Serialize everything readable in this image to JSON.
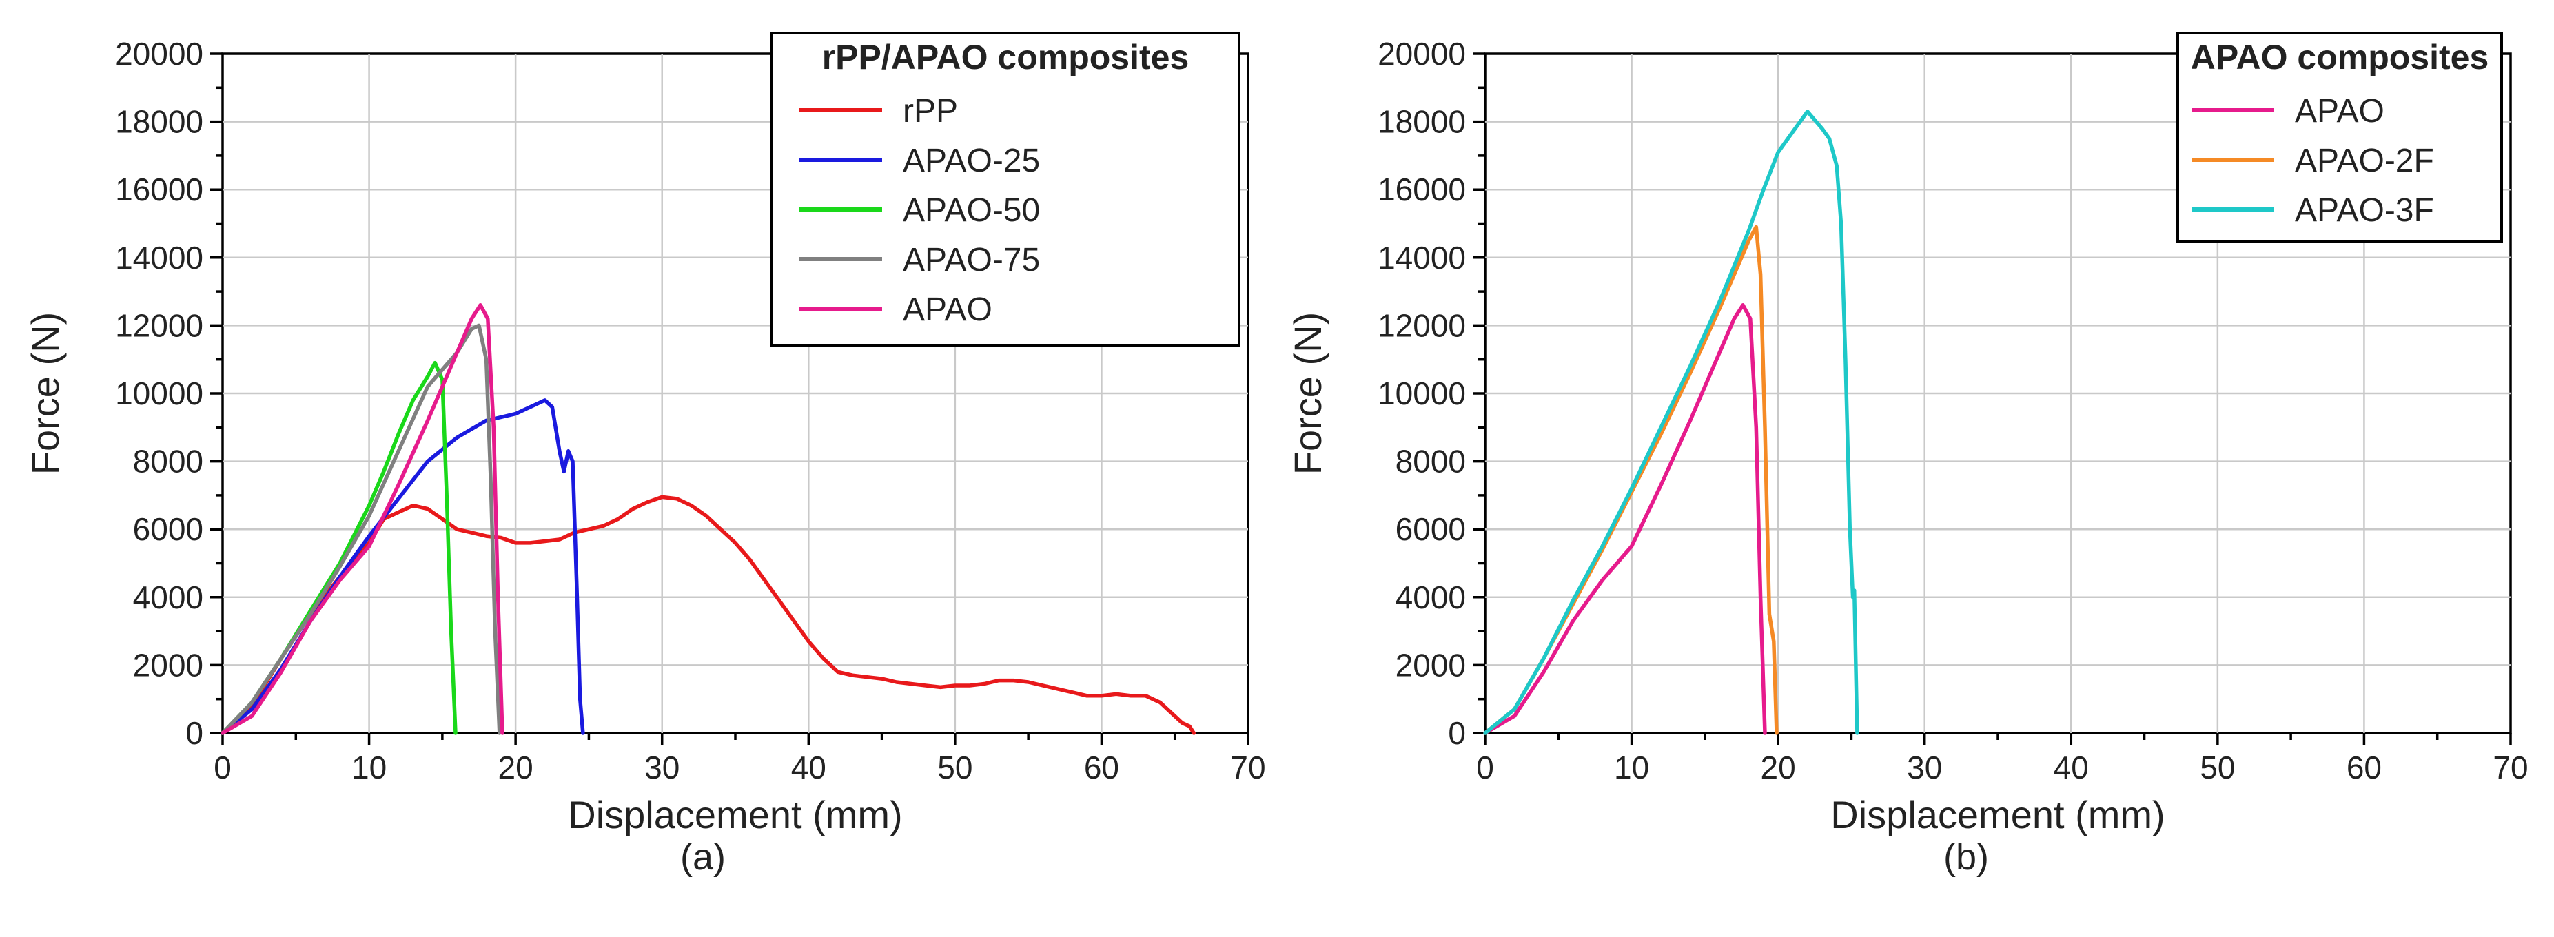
{
  "chart_data": [
    {
      "type": "line",
      "panel_label": "(a)",
      "xlabel": "Displacement (mm)",
      "ylabel": "Force (N)",
      "xlim": [
        0,
        70
      ],
      "ylim": [
        0,
        20000
      ],
      "xticks": [
        0,
        10,
        20,
        30,
        40,
        50,
        60,
        70
      ],
      "yticks": [
        0,
        2000,
        4000,
        6000,
        8000,
        10000,
        12000,
        14000,
        16000,
        18000,
        20000
      ],
      "grid": true,
      "legend": {
        "title": "rPP/APAO composites",
        "position": "top-right"
      },
      "series": [
        {
          "name": "rPP",
          "color": "#e8191b",
          "x": [
            0,
            2,
            4,
            6,
            8,
            10,
            11,
            12,
            13,
            14,
            15,
            16,
            17,
            18,
            19,
            20,
            21,
            22,
            23,
            24,
            25,
            26,
            27,
            28,
            29,
            30,
            31,
            32,
            33,
            34,
            35,
            36,
            37,
            38,
            39,
            40,
            41,
            42,
            43,
            44,
            45,
            46,
            47,
            48,
            49,
            50,
            51,
            52,
            53,
            54,
            55,
            56,
            57,
            58,
            59,
            60,
            61,
            62,
            63,
            64,
            65,
            65.5,
            66,
            66.3
          ],
          "y": [
            0,
            800,
            2200,
            3500,
            4600,
            5600,
            6300,
            6500,
            6700,
            6600,
            6300,
            6000,
            5900,
            5800,
            5750,
            5600,
            5600,
            5650,
            5700,
            5900,
            6000,
            6100,
            6300,
            6600,
            6800,
            6950,
            6900,
            6700,
            6400,
            6000,
            5600,
            5100,
            4500,
            3900,
            3300,
            2700,
            2200,
            1800,
            1700,
            1650,
            1600,
            1500,
            1450,
            1400,
            1350,
            1400,
            1400,
            1450,
            1550,
            1550,
            1500,
            1400,
            1300,
            1200,
            1100,
            1100,
            1150,
            1100,
            1100,
            900,
            500,
            300,
            200,
            0
          ]
        },
        {
          "name": "APAO-25",
          "color": "#1a1adf",
          "x": [
            0,
            2,
            4,
            6,
            8,
            10,
            12,
            14,
            16,
            18,
            19,
            20,
            21,
            22,
            22.5,
            23,
            23.3,
            23.6,
            23.9,
            24.2,
            24.4,
            24.6
          ],
          "y": [
            0,
            700,
            1900,
            3300,
            4600,
            5800,
            6900,
            8000,
            8700,
            9200,
            9300,
            9400,
            9600,
            9800,
            9600,
            8300,
            7700,
            8300,
            8000,
            4000,
            1000,
            0
          ]
        },
        {
          "name": "APAO-50",
          "color": "#1ad81a",
          "x": [
            0,
            2,
            4,
            6,
            8,
            10,
            11,
            12,
            13,
            14,
            14.5,
            15,
            15.3,
            15.6,
            15.9
          ],
          "y": [
            0,
            900,
            2200,
            3600,
            5000,
            6700,
            7700,
            8800,
            9800,
            10500,
            10900,
            10400,
            7000,
            3000,
            0
          ]
        },
        {
          "name": "APAO-75",
          "color": "#808080",
          "x": [
            0,
            2,
            4,
            6,
            8,
            10,
            12,
            14,
            16,
            17,
            17.5,
            18,
            18.3,
            18.6,
            18.9
          ],
          "y": [
            0,
            900,
            2200,
            3500,
            4900,
            6400,
            8300,
            10200,
            11200,
            11900,
            12000,
            11000,
            7500,
            3000,
            0
          ]
        },
        {
          "name": "APAO",
          "color": "#e61b8c",
          "x": [
            0,
            2,
            4,
            6,
            8,
            10,
            12,
            14,
            16,
            17,
            17.6,
            18.1,
            18.5,
            18.8,
            19.1
          ],
          "y": [
            0,
            500,
            1800,
            3300,
            4500,
            5500,
            7300,
            9200,
            11200,
            12200,
            12600,
            12200,
            9000,
            4000,
            0
          ]
        }
      ]
    },
    {
      "type": "line",
      "panel_label": "(b)",
      "xlabel": "Displacement (mm)",
      "ylabel": "Force (N)",
      "xlim": [
        0,
        70
      ],
      "ylim": [
        0,
        20000
      ],
      "xticks": [
        0,
        10,
        20,
        30,
        40,
        50,
        60,
        70
      ],
      "yticks": [
        0,
        2000,
        4000,
        6000,
        8000,
        10000,
        12000,
        14000,
        16000,
        18000,
        20000
      ],
      "grid": true,
      "legend": {
        "title": "APAO composites",
        "position": "top-right"
      },
      "series": [
        {
          "name": "APAO",
          "color": "#e61b8c",
          "x": [
            0,
            2,
            4,
            6,
            8,
            10,
            12,
            14,
            16,
            17,
            17.6,
            18.1,
            18.5,
            18.8,
            19.1
          ],
          "y": [
            0,
            500,
            1800,
            3300,
            4500,
            5500,
            7300,
            9200,
            11200,
            12200,
            12600,
            12200,
            9000,
            4000,
            0
          ]
        },
        {
          "name": "APAO-2F",
          "color": "#f58a25",
          "x": [
            0,
            2,
            4,
            6,
            8,
            10,
            12,
            14,
            16,
            17,
            18,
            18.5,
            18.8,
            19.1,
            19.4,
            19.7,
            19.9
          ],
          "y": [
            0,
            700,
            2200,
            3800,
            5400,
            7100,
            8800,
            10600,
            12500,
            13500,
            14500,
            14900,
            13500,
            9000,
            3500,
            2700,
            0
          ]
        },
        {
          "name": "APAO-3F",
          "color": "#1ec8c8",
          "x": [
            0,
            2,
            4,
            6,
            8,
            10,
            12,
            14,
            16,
            18,
            19,
            20,
            21,
            22,
            23,
            23.5,
            24,
            24.3,
            24.6,
            24.9,
            25.1,
            25.2,
            25.4
          ],
          "y": [
            0,
            700,
            2200,
            3900,
            5500,
            7200,
            9000,
            10800,
            12700,
            14800,
            16000,
            17100,
            17700,
            18300,
            17800,
            17500,
            16700,
            15000,
            11000,
            6000,
            4000,
            4200,
            0
          ]
        }
      ]
    }
  ]
}
